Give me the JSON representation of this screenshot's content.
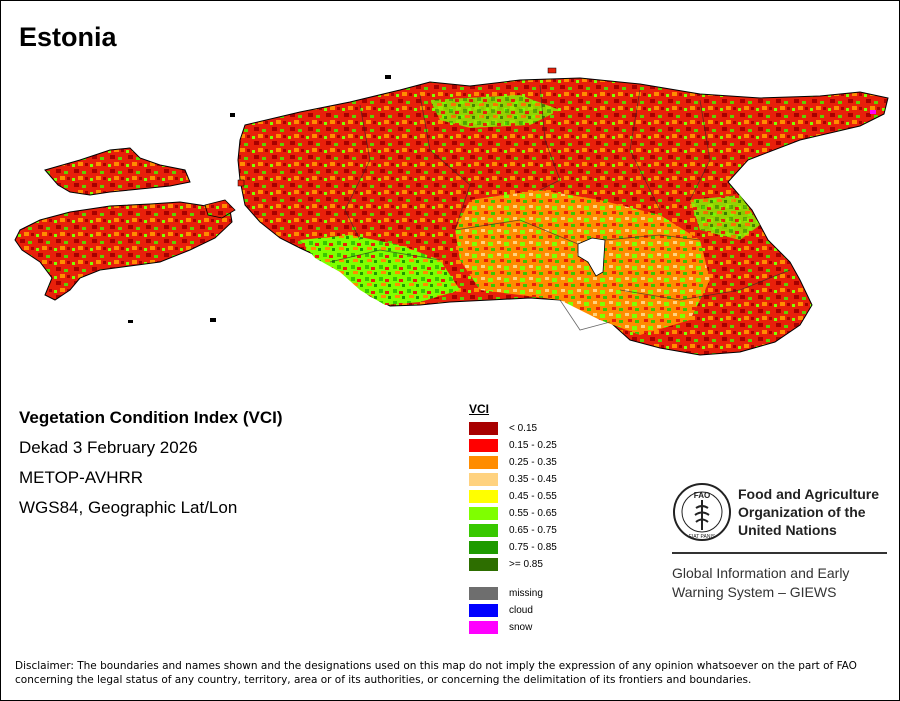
{
  "map": {
    "title": "Estonia"
  },
  "info": {
    "index_title": "Vegetation Condition Index (VCI)",
    "period": "Dekad 3 February 2026",
    "sensor": "METOP-AVHRR",
    "projection": "WGS84, Geographic Lat/Lon"
  },
  "legend": {
    "title": "VCI",
    "classes": [
      {
        "label": "< 0.15",
        "color": "#a80000"
      },
      {
        "label": "0.15 - 0.25",
        "color": "#ff0000"
      },
      {
        "label": "0.25 - 0.35",
        "color": "#ff8c00"
      },
      {
        "label": "0.35 - 0.45",
        "color": "#ffd27f"
      },
      {
        "label": "0.45 - 0.55",
        "color": "#ffff00"
      },
      {
        "label": "0.55 - 0.65",
        "color": "#7fff00"
      },
      {
        "label": "0.65 - 0.75",
        "color": "#38c800"
      },
      {
        "label": "0.75 - 0.85",
        "color": "#1e9a00"
      },
      {
        "label": ">= 0.85",
        "color": "#2d6e00"
      }
    ],
    "special": [
      {
        "label": "missing",
        "color": "#6e6e6e"
      },
      {
        "label": "cloud",
        "color": "#0000ff"
      },
      {
        "label": "snow",
        "color": "#ff00ff"
      }
    ]
  },
  "fao": {
    "logo_text": "FAO",
    "motto": "FIAT PANIS",
    "name_line1": "Food and Agriculture",
    "name_line2": "Organization of the",
    "name_line3": "United Nations",
    "giews_line1": "Global Information and Early",
    "giews_line2": "Warning System – GIEWS"
  },
  "disclaimer": {
    "line1": "Disclaimer: The boundaries and names shown and the designations used on this map do not imply the expression of any opinion whatsoever on the part of FAO",
    "line2": "concerning the legal status of any country, territory, area or of its authorities, or concerning the delimitation of its frontiers and boundaries."
  }
}
